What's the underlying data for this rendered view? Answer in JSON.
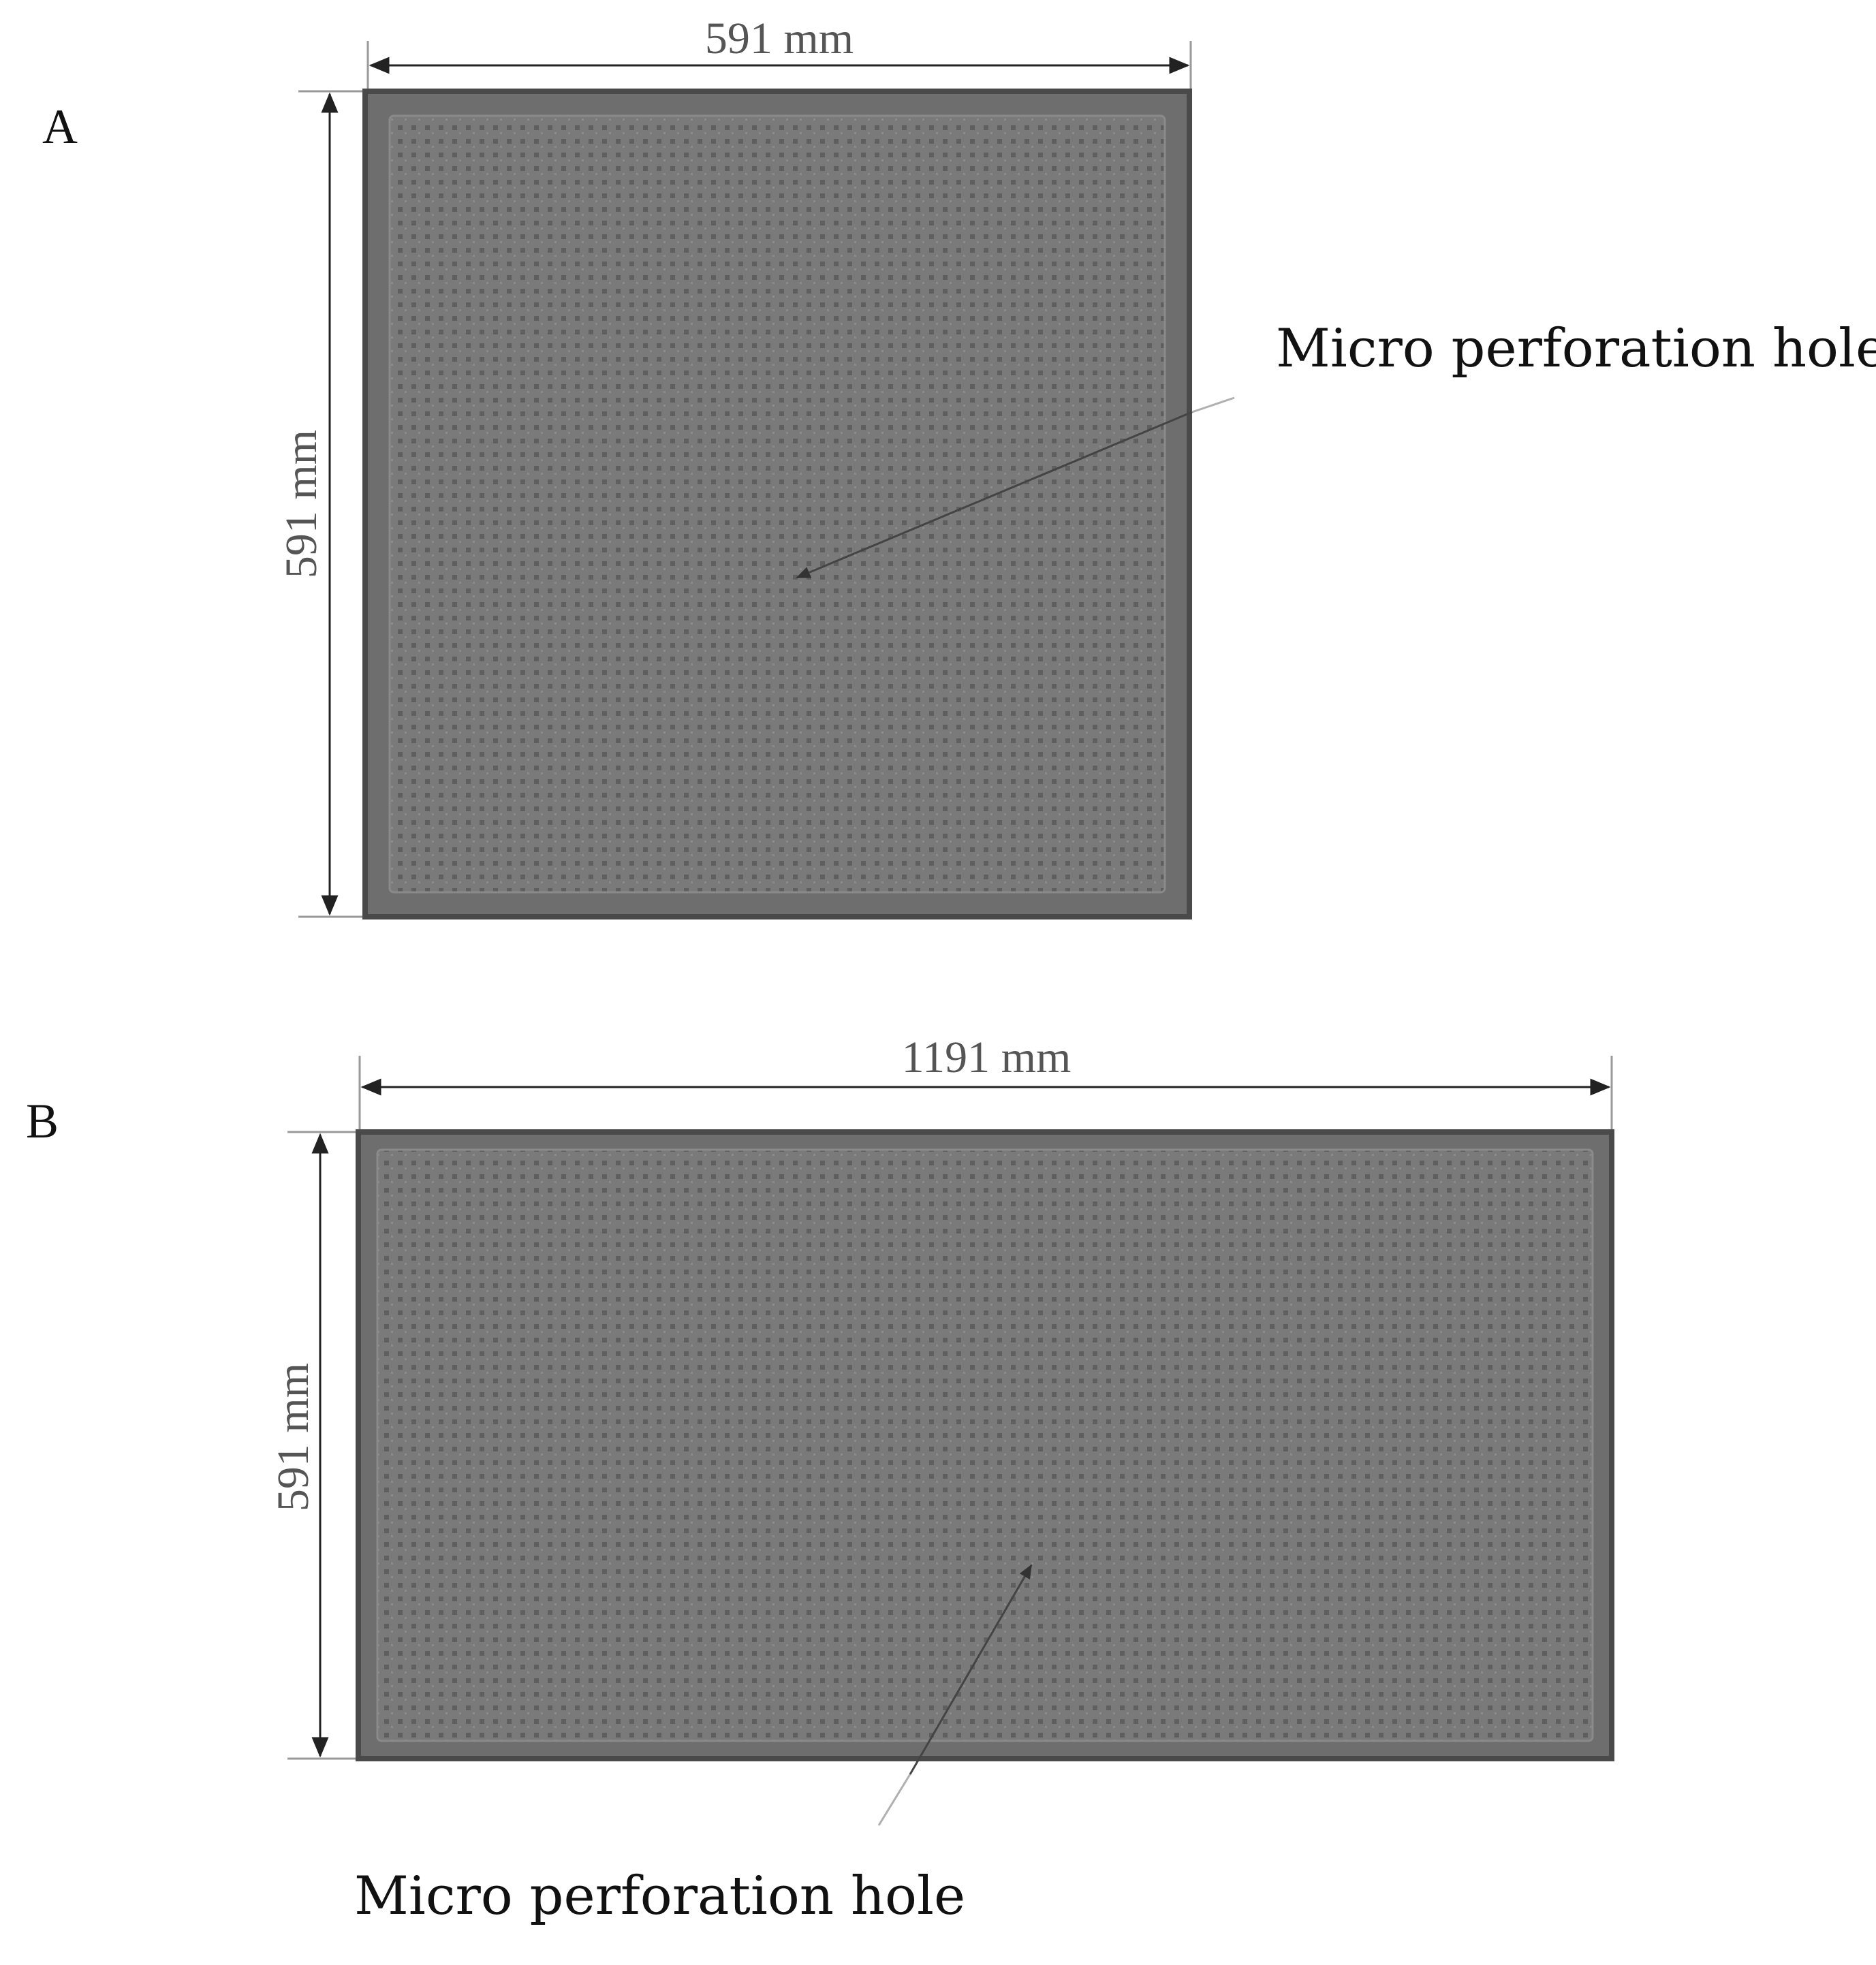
{
  "figure": {
    "panel_a": {
      "label": "A",
      "width_label": "591 mm",
      "height_label": "591 mm",
      "callout": "Micro perforation hole"
    },
    "panel_b": {
      "label": "B",
      "width_label": "1191 mm",
      "height_label": "591 mm",
      "callout": "Micro perforation hole"
    }
  }
}
